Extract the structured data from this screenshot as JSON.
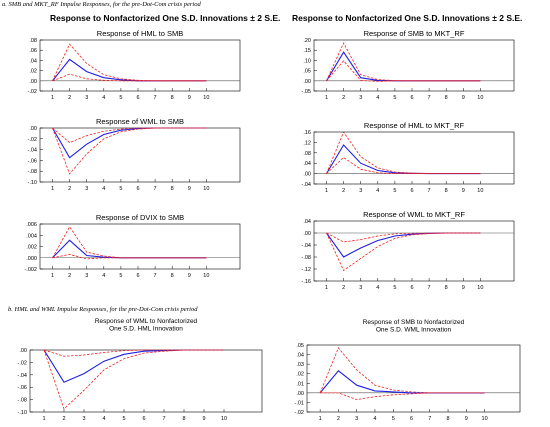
{
  "captions": {
    "section_a": "a. SMB and MKT_RF Impulse Responses, for the pre-Dot-Com crisis period",
    "section_b": "b. HML and WML Impulse Responses, for the pre-Dot-Com crisis period"
  },
  "headers": {
    "left": "Response to Nonfactorized One S.D. Innovations ± 2 S.E.",
    "right": "Response to Nonfactorized One S.D. Innovations ± 2 S.E."
  },
  "colors": {
    "response": "#1f1fe6",
    "band": "#ee2222",
    "axis": "#000000",
    "zero": "#555555"
  },
  "chart_data": [
    {
      "type": "line",
      "title": "Response of HML to SMB",
      "x": [
        1,
        2,
        3,
        4,
        5,
        6,
        7,
        8,
        9,
        10
      ],
      "xticks": [
        "1",
        "2",
        "3",
        "4",
        "5",
        "6",
        "7",
        "8",
        "9",
        "10"
      ],
      "ylim": [
        -0.02,
        0.08
      ],
      "yticks": [
        -0.02,
        0.0,
        0.02,
        0.04,
        0.06,
        0.08
      ],
      "ytick_labels": [
        "-.02",
        ".00",
        ".02",
        ".04",
        ".06",
        ".08"
      ],
      "series": [
        {
          "role": "response",
          "values": [
            0.0,
            0.042,
            0.018,
            0.006,
            0.002,
            0.0,
            0.0,
            0.0,
            0.0,
            0.0
          ]
        },
        {
          "role": "upper",
          "values": [
            0.0,
            0.072,
            0.034,
            0.012,
            0.004,
            0.001,
            0.0,
            0.0,
            0.0,
            0.0
          ]
        },
        {
          "role": "lower",
          "values": [
            0.0,
            0.013,
            0.004,
            0.001,
            0.0,
            0.0,
            0.0,
            0.0,
            0.0,
            0.0
          ]
        }
      ]
    },
    {
      "type": "line",
      "title": "Response of SMB to MKT_RF",
      "x": [
        1,
        2,
        3,
        4,
        5,
        6,
        7,
        8,
        9,
        10
      ],
      "xticks": [
        "1",
        "2",
        "3",
        "4",
        "5",
        "6",
        "7",
        "8",
        "9",
        "10"
      ],
      "ylim": [
        -0.05,
        0.2
      ],
      "yticks": [
        -0.05,
        0.0,
        0.05,
        0.1,
        0.15,
        0.2
      ],
      "ytick_labels": [
        "-.05",
        ".00",
        ".05",
        ".10",
        ".15",
        ".20"
      ],
      "series": [
        {
          "role": "response",
          "values": [
            0.0,
            0.14,
            0.015,
            0.002,
            0.0,
            0.0,
            0.0,
            0.0,
            0.0,
            0.0
          ]
        },
        {
          "role": "upper",
          "values": [
            0.0,
            0.185,
            0.03,
            0.006,
            0.001,
            0.0,
            0.0,
            0.0,
            0.0,
            0.0
          ]
        },
        {
          "role": "lower",
          "values": [
            0.0,
            0.098,
            0.002,
            -0.003,
            0.0,
            0.0,
            0.0,
            0.0,
            0.0,
            0.0
          ]
        }
      ]
    },
    {
      "type": "line",
      "title": "Response of WML to SMB",
      "x": [
        1,
        2,
        3,
        4,
        5,
        6,
        7,
        8,
        9,
        10
      ],
      "xticks": [
        "1",
        "2",
        "3",
        "4",
        "5",
        "6",
        "7",
        "8",
        "9",
        "10"
      ],
      "ylim": [
        -0.1,
        0.0
      ],
      "yticks": [
        -0.1,
        -0.08,
        -0.06,
        -0.04,
        -0.02,
        0.0
      ],
      "ytick_labels": [
        "-.10",
        "-.08",
        "-.06",
        "-.04",
        "-.02",
        ".00"
      ],
      "series": [
        {
          "role": "response",
          "values": [
            0.0,
            -0.055,
            -0.03,
            -0.012,
            -0.004,
            -0.001,
            0.0,
            0.0,
            0.0,
            0.0
          ]
        },
        {
          "role": "upper",
          "values": [
            0.0,
            -0.027,
            -0.014,
            -0.006,
            -0.002,
            0.0,
            0.0,
            0.0,
            0.0,
            0.0
          ]
        },
        {
          "role": "lower",
          "values": [
            0.0,
            -0.085,
            -0.048,
            -0.02,
            -0.007,
            -0.002,
            0.0,
            0.0,
            0.0,
            0.0
          ]
        }
      ]
    },
    {
      "type": "line",
      "title": "Response of HML to MKT_RF",
      "x": [
        1,
        2,
        3,
        4,
        5,
        6,
        7,
        8,
        9,
        10
      ],
      "xticks": [
        "1",
        "2",
        "3",
        "4",
        "5",
        "6",
        "7",
        "8",
        "9",
        "10"
      ],
      "ylim": [
        -0.04,
        0.16
      ],
      "yticks": [
        -0.04,
        0.0,
        0.04,
        0.08,
        0.12,
        0.16
      ],
      "ytick_labels": [
        "-.04",
        ".00",
        ".04",
        ".08",
        ".12",
        ".16"
      ],
      "series": [
        {
          "role": "response",
          "values": [
            0.0,
            0.11,
            0.04,
            0.012,
            0.003,
            0.001,
            0.0,
            0.0,
            0.0,
            0.0
          ]
        },
        {
          "role": "upper",
          "values": [
            0.0,
            0.16,
            0.065,
            0.022,
            0.006,
            0.002,
            0.0,
            0.0,
            0.0,
            0.0
          ]
        },
        {
          "role": "lower",
          "values": [
            0.0,
            0.062,
            0.017,
            0.003,
            0.0,
            0.0,
            0.0,
            0.0,
            0.0,
            0.0
          ]
        }
      ]
    },
    {
      "type": "line",
      "title": "Response of DVIX to SMB",
      "x": [
        1,
        2,
        3,
        4,
        5,
        6,
        7,
        8,
        9,
        10
      ],
      "xticks": [
        "1",
        "2",
        "3",
        "4",
        "5",
        "6",
        "7",
        "8",
        "9",
        "10"
      ],
      "ylim": [
        -0.002,
        0.006
      ],
      "yticks": [
        -0.002,
        0.0,
        0.002,
        0.004,
        0.006
      ],
      "ytick_labels": [
        "-.002",
        ".000",
        ".002",
        ".004",
        ".006"
      ],
      "series": [
        {
          "role": "response",
          "values": [
            0.0,
            0.0031,
            0.0004,
            0.0001,
            0.0,
            0.0,
            0.0,
            0.0,
            0.0,
            0.0
          ]
        },
        {
          "role": "upper",
          "values": [
            0.0,
            0.0055,
            0.001,
            0.0003,
            0.0,
            0.0,
            0.0,
            0.0,
            0.0,
            0.0
          ]
        },
        {
          "role": "lower",
          "values": [
            0.0,
            0.0006,
            -0.0002,
            0.0,
            0.0,
            0.0,
            0.0,
            0.0,
            0.0,
            0.0
          ]
        }
      ]
    },
    {
      "type": "line",
      "title": "Response of WML to MKT_RF",
      "x": [
        1,
        2,
        3,
        4,
        5,
        6,
        7,
        8,
        9,
        10
      ],
      "xticks": [
        "1",
        "2",
        "3",
        "4",
        "5",
        "6",
        "7",
        "8",
        "9",
        "10"
      ],
      "ylim": [
        -0.16,
        0.04
      ],
      "yticks": [
        -0.16,
        -0.12,
        -0.08,
        -0.04,
        0.0,
        0.04
      ],
      "ytick_labels": [
        "-.16",
        "-.12",
        "-.08",
        "-.04",
        ".00",
        ".04"
      ],
      "series": [
        {
          "role": "response",
          "values": [
            0.0,
            -0.08,
            -0.05,
            -0.025,
            -0.01,
            -0.004,
            -0.001,
            0.0,
            0.0,
            0.0
          ]
        },
        {
          "role": "upper",
          "values": [
            0.0,
            -0.03,
            -0.022,
            -0.01,
            -0.003,
            -0.001,
            0.0,
            0.0,
            0.0,
            0.0
          ]
        },
        {
          "role": "lower",
          "values": [
            0.0,
            -0.125,
            -0.085,
            -0.045,
            -0.018,
            -0.006,
            -0.002,
            0.0,
            0.0,
            0.0
          ]
        }
      ]
    },
    {
      "type": "line",
      "title": "Response of WML to Nonfactorized\nOne S.D. HML Innovation",
      "x": [
        1,
        2,
        3,
        4,
        5,
        6,
        7,
        8,
        9,
        10
      ],
      "xticks": [
        "1",
        "2",
        "3",
        "4",
        "5",
        "6",
        "7",
        "8",
        "9",
        "10"
      ],
      "ylim": [
        -0.1,
        0.0
      ],
      "yticks": [
        -0.1,
        -0.08,
        -0.06,
        -0.04,
        -0.02,
        0.0
      ],
      "ytick_labels": [
        "-.10",
        "-.08",
        "-.06",
        "-.04",
        "-.02",
        ".00"
      ],
      "series": [
        {
          "role": "response",
          "values": [
            0.0,
            -0.052,
            -0.038,
            -0.018,
            -0.007,
            -0.002,
            -0.001,
            0.0,
            0.0,
            0.0
          ]
        },
        {
          "role": "upper",
          "values": [
            0.0,
            -0.01,
            -0.008,
            -0.004,
            -0.001,
            0.0,
            0.0,
            0.0,
            0.0,
            0.0
          ]
        },
        {
          "role": "lower",
          "values": [
            0.0,
            -0.095,
            -0.065,
            -0.032,
            -0.014,
            -0.005,
            -0.002,
            0.0,
            0.0,
            0.0
          ]
        }
      ]
    },
    {
      "type": "line",
      "title": "Response of SMB to Nonfactorized\nOne S.D. WML Innovation",
      "x": [
        1,
        2,
        3,
        4,
        5,
        6,
        7,
        8,
        9,
        10
      ],
      "xticks": [
        "1",
        "2",
        "3",
        "4",
        "5",
        "6",
        "7",
        "8",
        "9",
        "10"
      ],
      "ylim": [
        -0.02,
        0.05
      ],
      "yticks": [
        -0.02,
        -0.01,
        0.0,
        0.01,
        0.02,
        0.03,
        0.04,
        0.05
      ],
      "ytick_labels": [
        "-.02",
        "-.01",
        ".00",
        ".01",
        ".02",
        ".03",
        ".04",
        ".05"
      ],
      "series": [
        {
          "role": "response",
          "values": [
            0.0,
            0.023,
            0.008,
            0.002,
            0.001,
            0.0,
            0.0,
            0.0,
            0.0,
            0.0
          ]
        },
        {
          "role": "upper",
          "values": [
            0.0,
            0.047,
            0.024,
            0.008,
            0.003,
            0.001,
            0.0,
            0.0,
            0.0,
            0.0
          ]
        },
        {
          "role": "lower",
          "values": [
            0.0,
            0.0,
            -0.007,
            -0.004,
            -0.002,
            -0.001,
            0.0,
            0.0,
            0.0,
            0.0
          ]
        }
      ]
    }
  ]
}
